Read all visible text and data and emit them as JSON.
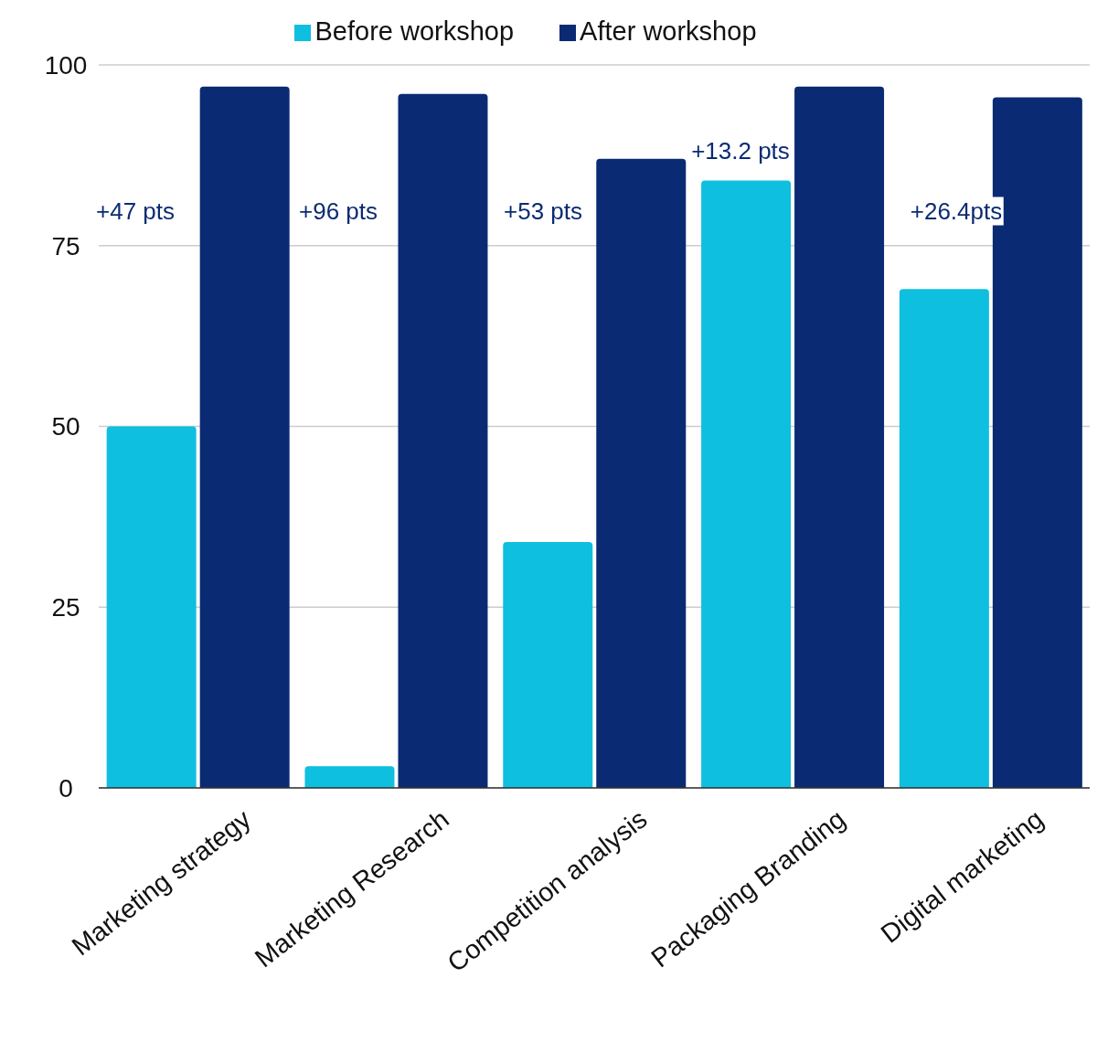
{
  "chart_data": {
    "type": "bar",
    "categories": [
      "Marketing strategy",
      "Marketing Research",
      "Competition analysis",
      "Packaging Branding",
      "Digital marketing"
    ],
    "series": [
      {
        "name": "Before workshop",
        "color": "#0fbfdf",
        "values": [
          50,
          3,
          34,
          84,
          69
        ]
      },
      {
        "name": "After workshop",
        "color": "#0a2b73",
        "values": [
          97,
          96,
          87,
          97,
          95.5
        ]
      }
    ],
    "ylim": [
      0,
      100
    ],
    "yticks": [
      0,
      25,
      50,
      75,
      100
    ],
    "grid": "y",
    "legend": "top",
    "annotations": [
      "+47 pts",
      "+96 pts",
      "+53 pts",
      "+13.2 pts",
      "+26.4pts"
    ]
  }
}
